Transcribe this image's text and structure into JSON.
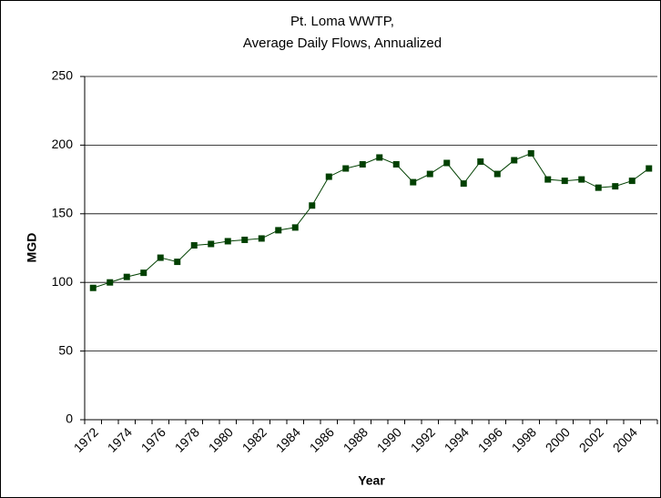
{
  "chart_data": {
    "type": "line",
    "title": [
      "Pt. Loma WWTP,",
      "Average Daily Flows, Annualized"
    ],
    "x_label": "Year",
    "y_label": "MGD",
    "categories": [
      "1972",
      null,
      "1974",
      null,
      "1976",
      null,
      "1978",
      null,
      "1980",
      null,
      "1982",
      null,
      "1984",
      null,
      "1986",
      null,
      "1988",
      null,
      "1990",
      null,
      "1992",
      null,
      "1994",
      null,
      "1996",
      null,
      "1998",
      null,
      "2000",
      null,
      "2002",
      null,
      "2004",
      null
    ],
    "values": [
      96,
      100,
      104,
      107,
      118,
      115,
      127,
      128,
      130,
      131,
      132,
      138,
      140,
      156,
      177,
      183,
      186,
      191,
      186,
      173,
      179,
      187,
      172,
      188,
      179,
      189,
      194,
      175,
      174,
      175,
      169,
      170,
      174,
      183
    ],
    "color": "#004000",
    "ylim": [
      0,
      250
    ],
    "yticks": [
      0,
      50,
      100,
      150,
      200,
      250
    ],
    "grid": true
  }
}
